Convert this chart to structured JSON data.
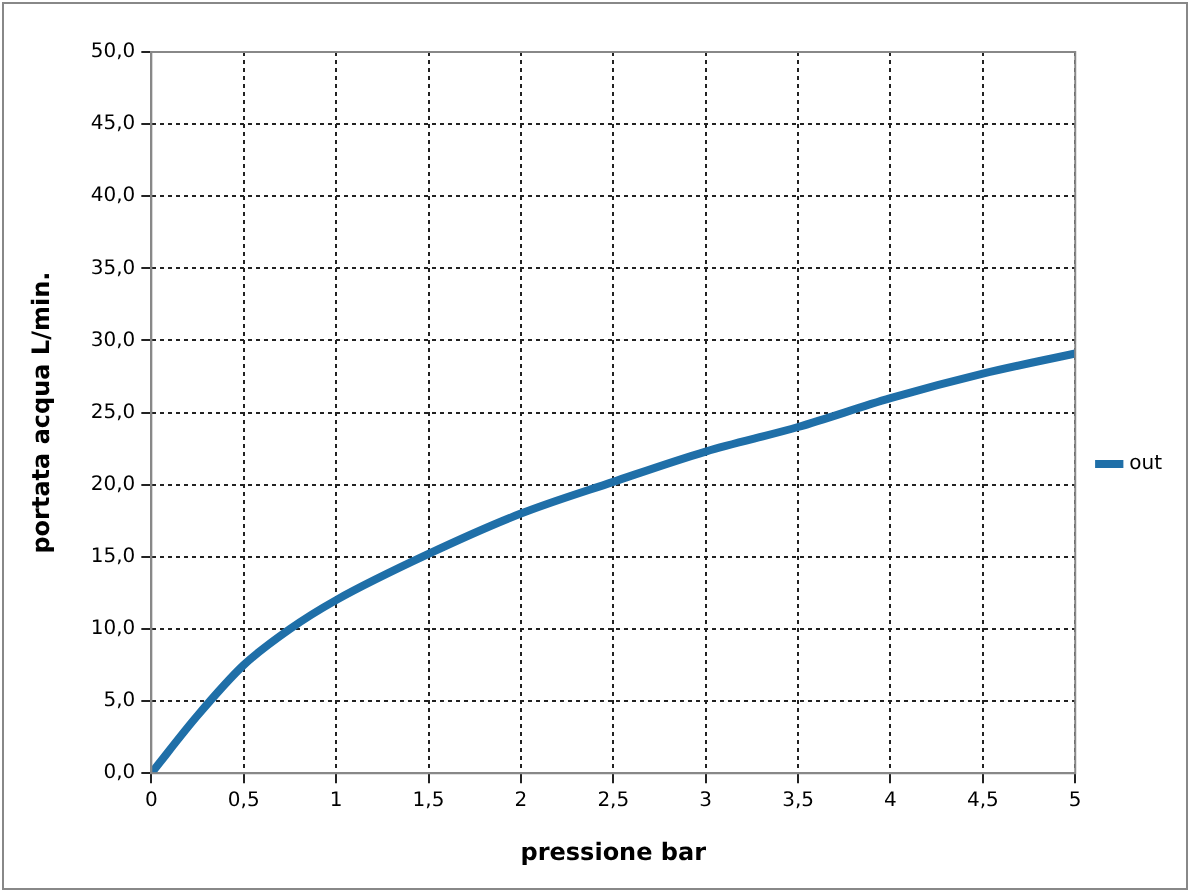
{
  "chart_data": {
    "type": "line",
    "xlabel": "pressione bar",
    "ylabel": "portata acqua L/min.",
    "x": [
      0,
      0.25,
      0.5,
      0.75,
      1,
      1.5,
      2,
      2.5,
      3,
      3.5,
      4,
      4.5,
      5
    ],
    "series": [
      {
        "name": "out",
        "color": "#1f6fa8",
        "values": [
          0,
          4,
          7.5,
          10,
          12,
          15.2,
          18,
          20.2,
          22.3,
          24,
          26,
          27.7,
          29.1
        ]
      }
    ],
    "xlim": [
      0,
      5
    ],
    "xticks": [
      0,
      {
        "value": 0.5,
        "label": "0,5"
      },
      1,
      {
        "value": 1.5,
        "label": "1,5"
      },
      2,
      {
        "value": 2.5,
        "label": "2,5"
      },
      3,
      {
        "value": 3.5,
        "label": "3,5"
      },
      4,
      {
        "value": 4.5,
        "label": "4,5"
      },
      5
    ],
    "ylim": [
      0,
      50
    ],
    "yticks": [
      {
        "value": 0,
        "label": "0,0"
      },
      {
        "value": 5,
        "label": "5,0"
      },
      {
        "value": 10,
        "label": "10,0"
      },
      {
        "value": 15,
        "label": "15,0"
      },
      {
        "value": 20,
        "label": "20,0"
      },
      {
        "value": 25,
        "label": "25,0"
      },
      {
        "value": 30,
        "label": "30,0"
      },
      {
        "value": 35,
        "label": "35,0"
      },
      {
        "value": 40,
        "label": "40,0"
      },
      {
        "value": 45,
        "label": "45,0"
      },
      {
        "value": 50,
        "label": "50,0"
      }
    ],
    "grid": true,
    "legend": "right",
    "marker": "none",
    "line_style": "solid"
  }
}
